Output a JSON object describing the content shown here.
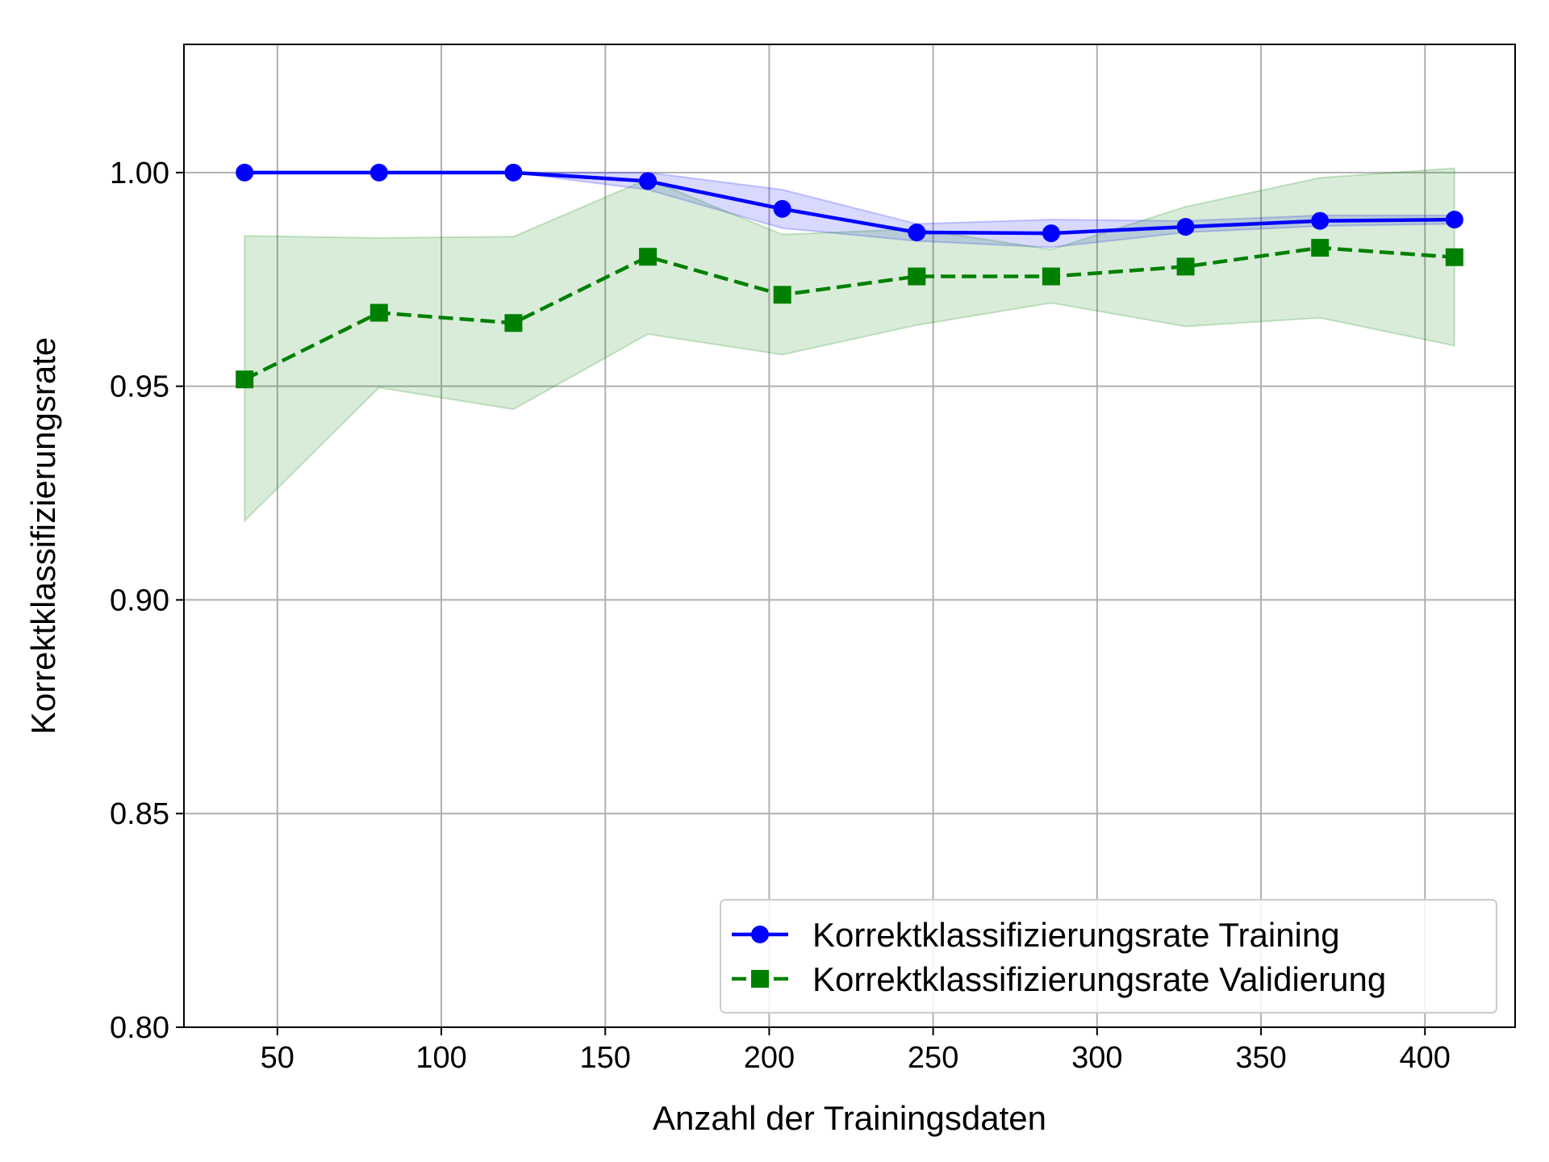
{
  "chart_data": {
    "type": "line",
    "title": "",
    "xlabel": "Anzahl der Trainingsdaten",
    "ylabel": "Korrektklassifizierungsrate",
    "xlim": [
      21.5,
      427.5
    ],
    "ylim": [
      0.8,
      1.03
    ],
    "xticks": [
      50,
      100,
      150,
      200,
      250,
      300,
      350,
      400
    ],
    "xtick_labels": [
      "50",
      "100",
      "150",
      "200",
      "250",
      "300",
      "350",
      "400"
    ],
    "yticks": [
      0.8,
      0.85,
      0.9,
      0.95,
      1.0
    ],
    "ytick_labels": [
      "0.80",
      "0.85",
      "0.90",
      "0.95",
      "1.00"
    ],
    "grid": true,
    "legend_position": "lower-right",
    "x": [
      40,
      81,
      122,
      163,
      204,
      245,
      286,
      327,
      368,
      409
    ],
    "series": [
      {
        "name": "Korrektklassifizierungsrate Training",
        "color": "#0000ff",
        "line_style": "solid",
        "marker": "circle",
        "values": [
          1.0,
          1.0,
          1.0,
          0.998,
          0.9915,
          0.986,
          0.9858,
          0.9873,
          0.9887,
          0.989
        ],
        "band_lower": [
          1.0,
          1.0,
          1.0,
          0.996,
          0.987,
          0.984,
          0.9825,
          0.986,
          0.9875,
          0.988
        ],
        "band_upper": [
          1.0,
          1.0,
          1.0,
          1.0,
          0.996,
          0.988,
          0.989,
          0.9887,
          0.99,
          0.99
        ],
        "band_color": "#0000ff"
      },
      {
        "name": "Korrektklassifizierungsrate Validierung",
        "color": "#008000",
        "line_style": "dashed",
        "marker": "square",
        "values": [
          0.9516,
          0.9672,
          0.9648,
          0.9803,
          0.9714,
          0.9757,
          0.9757,
          0.978,
          0.9824,
          0.9802
        ],
        "band_lower": [
          0.9185,
          0.9497,
          0.9446,
          0.9622,
          0.9574,
          0.9643,
          0.9695,
          0.964,
          0.966,
          0.9595
        ],
        "band_upper": [
          0.9852,
          0.9847,
          0.985,
          0.9985,
          0.9855,
          0.9868,
          0.982,
          0.992,
          0.9988,
          1.001
        ],
        "band_color": "#008000"
      }
    ]
  }
}
